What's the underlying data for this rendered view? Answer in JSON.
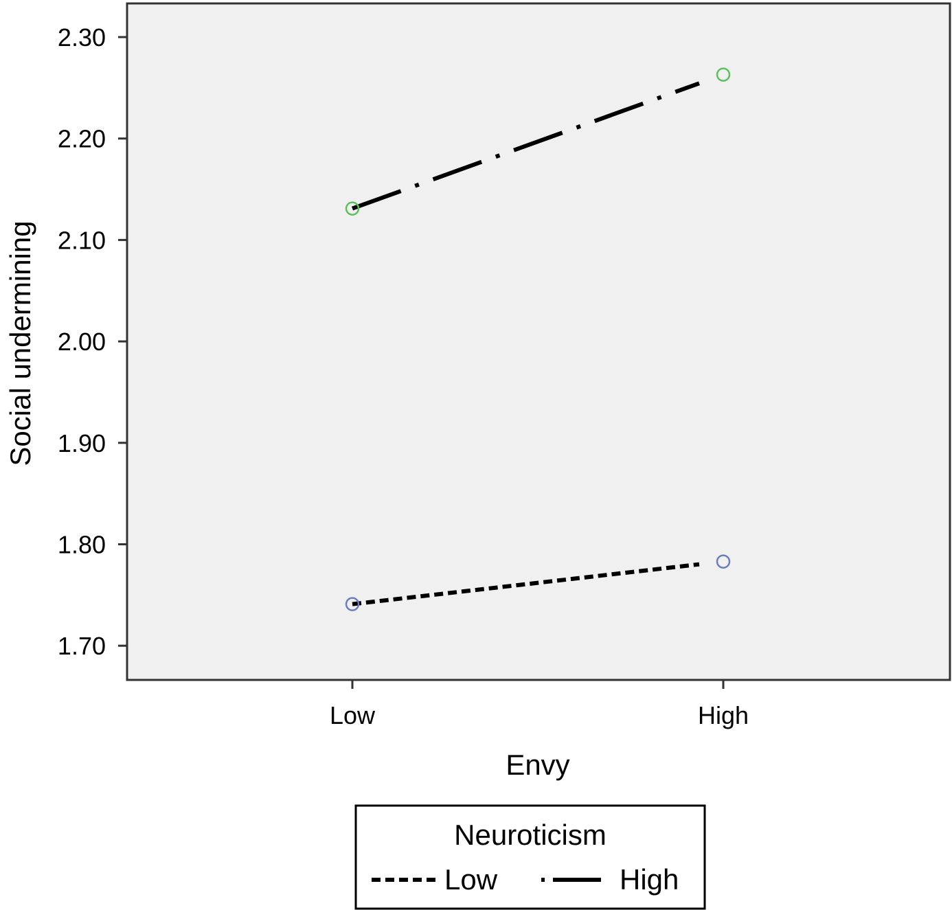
{
  "chart_data": {
    "type": "line",
    "title": "",
    "xlabel": "Envy",
    "ylabel": "Social undermining",
    "categories": [
      "Low",
      "High"
    ],
    "ylim": [
      1.67,
      2.333
    ],
    "yticks": [
      "1.70",
      "1.80",
      "1.90",
      "2.00",
      "2.10",
      "2.20",
      "2.30"
    ],
    "grid": false,
    "legend": {
      "title": "Neuroticism",
      "placement": "bottom"
    },
    "series": [
      {
        "name": "Low",
        "values": [
          1.741,
          1.783
        ],
        "line_style": "dashed",
        "marker_color": "#6a7dc0"
      },
      {
        "name": "High",
        "values": [
          2.131,
          2.263
        ],
        "line_style": "dash-dot",
        "marker_color": "#5cc05c"
      }
    ],
    "plot_background": "#f0f0f0"
  }
}
